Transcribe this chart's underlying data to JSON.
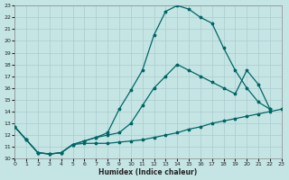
{
  "background_color": "#c5e5e5",
  "grid_color": "#aacccc",
  "line_color": "#006666",
  "xlabel": "Humidex (Indice chaleur)",
  "xlim": [
    0,
    23
  ],
  "ylim": [
    10,
    23
  ],
  "xticks": [
    0,
    1,
    2,
    3,
    4,
    5,
    6,
    7,
    8,
    9,
    10,
    11,
    12,
    13,
    14,
    15,
    16,
    17,
    18,
    19,
    20,
    21,
    22,
    23
  ],
  "yticks": [
    10,
    11,
    12,
    13,
    14,
    15,
    16,
    17,
    18,
    19,
    20,
    21,
    22,
    23
  ],
  "line1_x": [
    0,
    1,
    2,
    3,
    4,
    5,
    6,
    7,
    8,
    9,
    10,
    11,
    12,
    13,
    14,
    15,
    16,
    17,
    18,
    19,
    20,
    21,
    22,
    23
  ],
  "line1_y": [
    12.7,
    11.6,
    10.5,
    10.4,
    10.5,
    11.2,
    11.3,
    11.3,
    11.3,
    11.4,
    11.5,
    11.6,
    11.8,
    12.0,
    12.2,
    12.5,
    12.7,
    13.0,
    13.2,
    13.4,
    13.6,
    13.8,
    14.0,
    14.2
  ],
  "line2_x": [
    0,
    1,
    2,
    3,
    4,
    5,
    6,
    7,
    8,
    9,
    10,
    11,
    12,
    13,
    14,
    15,
    16,
    17,
    18,
    19,
    20,
    21,
    22
  ],
  "line2_y": [
    12.7,
    11.6,
    10.5,
    10.4,
    10.5,
    11.2,
    11.5,
    11.8,
    12.2,
    14.2,
    15.8,
    17.5,
    20.5,
    22.5,
    23.0,
    22.7,
    22.0,
    21.5,
    19.4,
    17.5,
    16.0,
    14.8,
    14.2
  ],
  "line3_x": [
    0,
    1,
    2,
    3,
    4,
    5,
    6,
    7,
    8,
    9,
    10,
    11,
    12,
    13,
    14,
    15,
    16,
    17,
    18,
    19,
    20,
    21,
    22
  ],
  "line3_y": [
    12.7,
    11.6,
    10.5,
    10.4,
    10.5,
    11.2,
    11.5,
    11.8,
    12.0,
    12.2,
    13.0,
    14.5,
    16.0,
    17.0,
    18.0,
    17.5,
    17.0,
    16.5,
    16.0,
    15.5,
    17.5,
    16.3,
    14.2
  ]
}
